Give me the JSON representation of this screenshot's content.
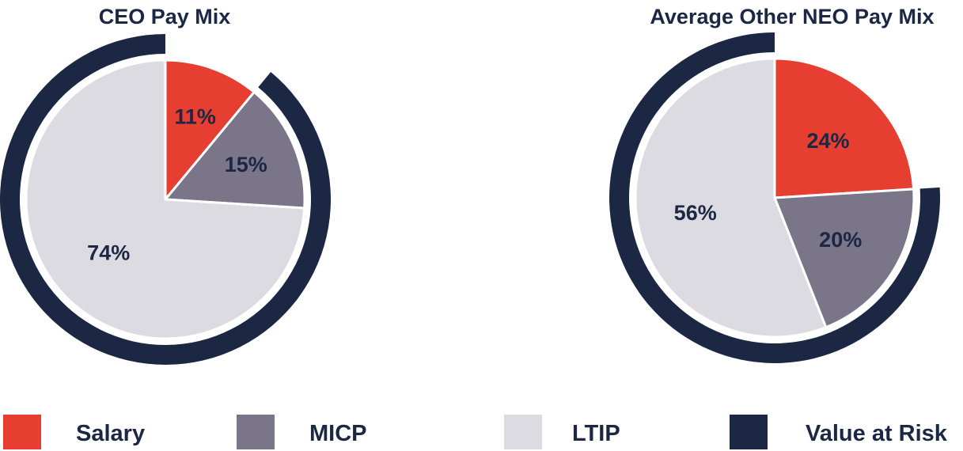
{
  "colors": {
    "salary": "#e63e30",
    "micp": "#7a7588",
    "ltip": "#dcdbe1",
    "value_at_risk": "#1b2743",
    "label_text": "#1b2743",
    "slice_border": "#ffffff"
  },
  "legend": {
    "items": [
      {
        "key": "salary",
        "label": "Salary"
      },
      {
        "key": "micp",
        "label": "MICP"
      },
      {
        "key": "ltip",
        "label": "LTIP"
      },
      {
        "key": "value_at_risk",
        "label": "Value at Risk"
      }
    ]
  },
  "chart_data": [
    {
      "type": "pie",
      "title": "CEO Pay Mix",
      "slices": [
        {
          "name": "Salary",
          "key": "salary",
          "value": 11,
          "label": "11%"
        },
        {
          "name": "MICP",
          "key": "micp",
          "value": 15,
          "label": "15%"
        },
        {
          "name": "LTIP",
          "key": "ltip",
          "value": 74,
          "label": "74%"
        }
      ],
      "value_at_risk": {
        "key": "value_at_risk",
        "value": 89
      }
    },
    {
      "type": "pie",
      "title": "Average Other NEO Pay Mix",
      "slices": [
        {
          "name": "Salary",
          "key": "salary",
          "value": 24,
          "label": "24%"
        },
        {
          "name": "MICP",
          "key": "micp",
          "value": 20,
          "label": "20%"
        },
        {
          "name": "LTIP",
          "key": "ltip",
          "value": 56,
          "label": "56%"
        }
      ],
      "value_at_risk": {
        "key": "value_at_risk",
        "value": 76
      }
    }
  ]
}
